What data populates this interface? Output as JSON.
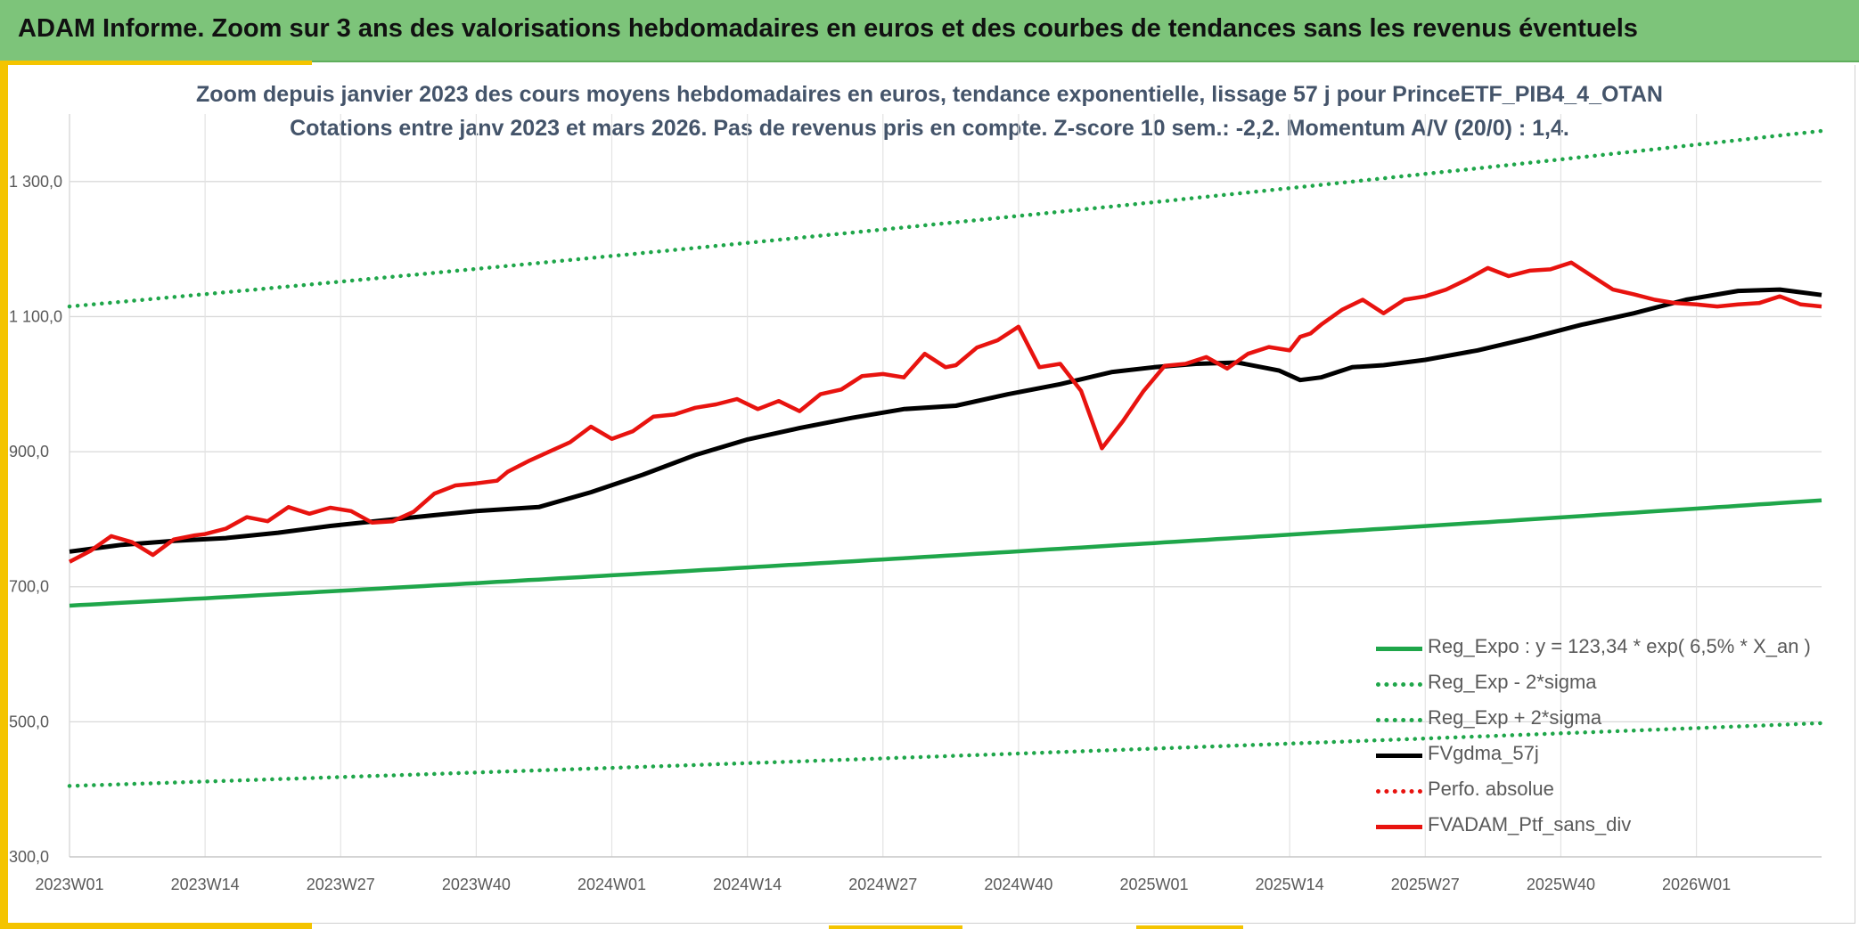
{
  "header": {
    "title": "ADAM Informe. Zoom sur 3 ans des valorisations hebdomadaires en euros et des courbes de tendances sans les revenus éventuels"
  },
  "colors": {
    "header_bg": "#7dc47a",
    "accent": "#f4c400",
    "trend": "#1fa64a",
    "price": "#e8130f",
    "smooth": "#000000",
    "title": "#44546a"
  },
  "chart_data": {
    "type": "line",
    "title": "Zoom depuis janvier 2023 des cours moyens hebdomadaires en euros, tendance exponentielle, lissage 57 j pour PrinceETF_PIB4_4_OTAN",
    "subtitle": "Cotations entre janv 2023 et mars 2026. Pas de revenus pris en compte. Z-score 10 sem.: -2,2. Momentum A/V (20/0) : 1,4.",
    "xlabel": "",
    "ylabel": "",
    "ylim": [
      300,
      1400
    ],
    "yticks": [
      300,
      500,
      700,
      900,
      1100,
      1300
    ],
    "ytick_labels": [
      "300,0",
      "500,0",
      "700,0",
      "900,0",
      "1 100,0",
      "1 300,0"
    ],
    "x_range_weeks": [
      0,
      168
    ],
    "xtick_weeks": [
      0,
      13,
      26,
      39,
      52,
      65,
      78,
      91,
      104,
      117,
      130,
      143,
      156
    ],
    "xtick_labels": [
      "2023W01",
      "2023W14",
      "2023W27",
      "2023W40",
      "2024W01",
      "2024W14",
      "2024W27",
      "2024W40",
      "2025W01",
      "2025W14",
      "2025W27",
      "2025W40",
      "2026W01"
    ],
    "grid": true,
    "legend_position": "bottom-right",
    "series": [
      {
        "name": "Reg_Expo : y = 123,34 * exp( 6,5% *  X_an )",
        "style": "solid-green",
        "x": [
          0,
          168
        ],
        "values": [
          672,
          828
        ]
      },
      {
        "name": "Reg_Exp - 2*sigma",
        "style": "dotted-green",
        "x": [
          0,
          168
        ],
        "values": [
          405,
          498
        ]
      },
      {
        "name": "Reg_Exp + 2*sigma",
        "style": "dotted-green",
        "x": [
          0,
          168
        ],
        "values": [
          1115,
          1375
        ]
      },
      {
        "name": "FVgdma_57j",
        "style": "solid-black",
        "x": [
          0,
          5,
          10,
          15,
          20,
          25,
          30,
          35,
          39,
          45,
          50,
          55,
          60,
          65,
          70,
          75,
          80,
          85,
          90,
          95,
          100,
          104,
          108,
          112,
          116,
          118,
          120,
          123,
          126,
          130,
          135,
          140,
          145,
          150,
          155,
          160,
          164,
          168
        ],
        "values": [
          752,
          762,
          768,
          772,
          780,
          790,
          798,
          806,
          812,
          818,
          840,
          866,
          895,
          918,
          935,
          950,
          963,
          968,
          985,
          1000,
          1018,
          1025,
          1030,
          1032,
          1020,
          1006,
          1010,
          1025,
          1028,
          1036,
          1050,
          1068,
          1088,
          1105,
          1125,
          1138,
          1140,
          1132
        ]
      },
      {
        "name": "Perfo. absolue",
        "style": "dotted-red",
        "x": [],
        "values": []
      },
      {
        "name": "FVADAM_Ptf_sans_div",
        "style": "solid-red",
        "x": [
          0,
          2,
          4,
          6,
          8,
          10,
          12,
          13,
          15,
          17,
          19,
          21,
          23,
          25,
          27,
          29,
          31,
          33,
          35,
          37,
          39,
          41,
          42,
          44,
          46,
          48,
          50,
          52,
          54,
          56,
          58,
          60,
          62,
          64,
          66,
          68,
          70,
          72,
          74,
          76,
          78,
          80,
          82,
          84,
          85,
          87,
          89,
          91,
          93,
          95,
          97,
          99,
          101,
          103,
          105,
          107,
          109,
          111,
          113,
          115,
          117,
          118,
          119,
          120,
          122,
          124,
          126,
          128,
          130,
          132,
          134,
          136,
          138,
          140,
          142,
          144,
          146,
          148,
          150,
          152,
          154,
          156,
          158,
          160,
          162,
          164,
          166,
          168
        ],
        "values": [
          737,
          753,
          775,
          766,
          747,
          770,
          776,
          778,
          786,
          803,
          797,
          818,
          808,
          817,
          812,
          795,
          797,
          811,
          838,
          850,
          853,
          857,
          870,
          886,
          900,
          914,
          937,
          919,
          930,
          952,
          955,
          965,
          970,
          978,
          963,
          975,
          960,
          985,
          992,
          1012,
          1015,
          1010,
          1045,
          1025,
          1028,
          1054,
          1065,
          1085,
          1025,
          1030,
          990,
          905,
          945,
          990,
          1027,
          1030,
          1040,
          1023,
          1045,
          1055,
          1050,
          1070,
          1075,
          1088,
          1110,
          1125,
          1105,
          1125,
          1130,
          1140,
          1155,
          1172,
          1160,
          1168,
          1170,
          1180,
          1160,
          1140,
          1133,
          1125,
          1120,
          1118,
          1115,
          1118,
          1120,
          1130,
          1118,
          1115
        ]
      }
    ]
  }
}
